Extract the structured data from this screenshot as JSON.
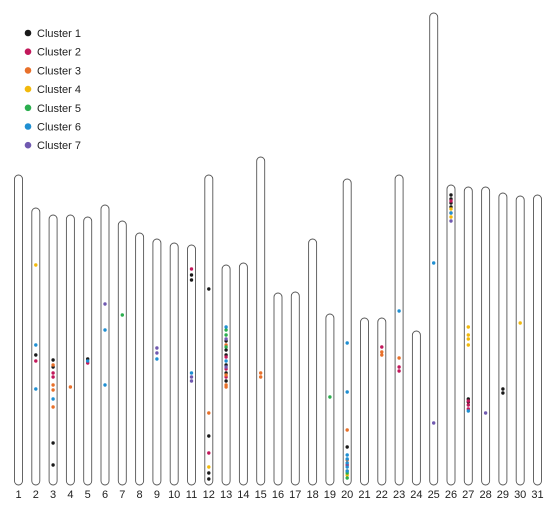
{
  "chart_data": {
    "type": "scatter",
    "title": "",
    "xlabel": "",
    "ylabel": "",
    "legend_position": "top-left",
    "chromosomes": [
      "1",
      "2",
      "3",
      "4",
      "5",
      "6",
      "7",
      "8",
      "9",
      "10",
      "11",
      "12",
      "13",
      "14",
      "15",
      "16",
      "17",
      "18",
      "19",
      "20",
      "21",
      "22",
      "23",
      "24",
      "25",
      "26",
      "27",
      "28",
      "29",
      "30",
      "31"
    ],
    "chromosome_lengths": [
      310,
      277,
      270,
      270,
      268,
      280,
      264,
      252,
      246,
      242,
      240,
      310,
      220,
      222,
      328,
      192,
      193,
      246,
      171,
      306,
      167,
      167,
      310,
      154,
      472,
      300,
      298,
      298,
      292,
      289,
      290
    ],
    "series": [
      {
        "name": "Cluster 1",
        "color": "#1a1a1a",
        "points": [
          [
            2,
            130
          ],
          [
            3,
            118
          ],
          [
            3,
            125
          ],
          [
            3,
            42
          ],
          [
            3,
            20
          ],
          [
            5,
            126
          ],
          [
            11,
            210
          ],
          [
            11,
            205
          ],
          [
            12,
            196
          ],
          [
            12,
            49
          ],
          [
            12,
            12
          ],
          [
            12,
            6
          ],
          [
            13,
            135
          ],
          [
            13,
            130
          ],
          [
            13,
            120
          ],
          [
            13,
            112
          ],
          [
            13,
            104
          ],
          [
            13,
            144
          ],
          [
            20,
            38
          ],
          [
            26,
            290
          ],
          [
            26,
            286
          ],
          [
            26,
            282
          ],
          [
            26,
            278
          ],
          [
            27,
            86
          ],
          [
            27,
            83
          ],
          [
            29,
            96
          ],
          [
            29,
            92
          ]
        ]
      },
      {
        "name": "Cluster 2",
        "color": "#c2185b",
        "points": [
          [
            2,
            124
          ],
          [
            3,
            112
          ],
          [
            3,
            108
          ],
          [
            5,
            122
          ],
          [
            11,
            216
          ],
          [
            12,
            32
          ],
          [
            13,
            108
          ],
          [
            13,
            116
          ],
          [
            13,
            128
          ],
          [
            20,
            20
          ],
          [
            22,
            138
          ],
          [
            23,
            118
          ],
          [
            23,
            114
          ],
          [
            26,
            284
          ],
          [
            27,
            80
          ],
          [
            27,
            76
          ],
          [
            27,
            84
          ]
        ]
      },
      {
        "name": "Cluster 3",
        "color": "#e8702a",
        "points": [
          [
            3,
            120
          ],
          [
            3,
            95
          ],
          [
            3,
            78
          ],
          [
            3,
            100
          ],
          [
            4,
            98
          ],
          [
            12,
            72
          ],
          [
            13,
            100
          ],
          [
            13,
            110
          ],
          [
            13,
            140
          ],
          [
            13,
            98
          ],
          [
            15,
            108
          ],
          [
            15,
            112
          ],
          [
            20,
            55
          ],
          [
            20,
            25
          ],
          [
            22,
            133
          ],
          [
            22,
            130
          ],
          [
            23,
            127
          ],
          [
            26,
            272
          ]
        ]
      },
      {
        "name": "Cluster 4",
        "color": "#f2b90c",
        "points": [
          [
            2,
            220
          ],
          [
            12,
            18
          ],
          [
            20,
            14
          ],
          [
            20,
            10
          ],
          [
            26,
            276
          ],
          [
            26,
            268
          ],
          [
            27,
            140
          ],
          [
            27,
            146
          ],
          [
            27,
            150
          ],
          [
            27,
            158
          ],
          [
            30,
            162
          ]
        ]
      },
      {
        "name": "Cluster 5",
        "color": "#2bae4e",
        "points": [
          [
            7,
            170
          ],
          [
            13,
            155
          ],
          [
            13,
            150
          ],
          [
            13,
            138
          ],
          [
            19,
            88
          ],
          [
            20,
            12
          ],
          [
            20,
            7
          ]
        ]
      },
      {
        "name": "Cluster 6",
        "color": "#1f8fd2",
        "points": [
          [
            2,
            140
          ],
          [
            2,
            96
          ],
          [
            3,
            86
          ],
          [
            5,
            124
          ],
          [
            6,
            155
          ],
          [
            6,
            100
          ],
          [
            9,
            126
          ],
          [
            11,
            112
          ],
          [
            13,
            158
          ],
          [
            13,
            124
          ],
          [
            20,
            142
          ],
          [
            20,
            93
          ],
          [
            20,
            30
          ],
          [
            20,
            26
          ],
          [
            20,
            22
          ],
          [
            20,
            18
          ],
          [
            20,
            14
          ],
          [
            23,
            174
          ],
          [
            25,
            222
          ],
          [
            26,
            272
          ],
          [
            27,
            74
          ]
        ]
      },
      {
        "name": "Cluster 7",
        "color": "#7059b0",
        "points": [
          [
            6,
            181
          ],
          [
            9,
            137
          ],
          [
            9,
            132
          ],
          [
            11,
            104
          ],
          [
            11,
            108
          ],
          [
            13,
            146
          ],
          [
            13,
            118
          ],
          [
            25,
            62
          ],
          [
            26,
            264
          ],
          [
            28,
            72
          ]
        ]
      }
    ]
  }
}
